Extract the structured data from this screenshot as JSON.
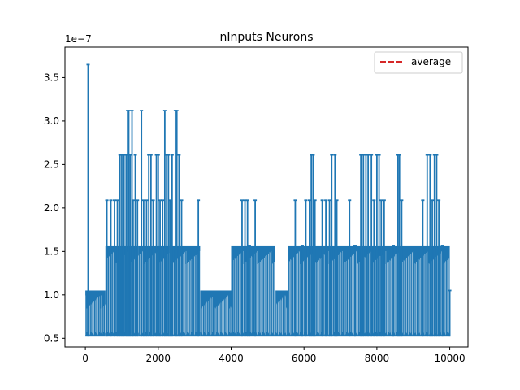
{
  "chart_data": {
    "type": "line",
    "title": "nInputs Neurons",
    "xlabel": "",
    "ylabel": "",
    "y_offset_label": "1e−7",
    "xlim": [
      -560,
      10500
    ],
    "ylim": [
      0.4,
      3.85
    ],
    "xticks": [
      0,
      2000,
      4000,
      6000,
      8000,
      10000
    ],
    "xtick_labels": [
      "0",
      "2000",
      "4000",
      "6000",
      "8000",
      "10000"
    ],
    "yticks": [
      0.5,
      1.0,
      1.5,
      2.0,
      2.5,
      3.0,
      3.5
    ],
    "ytick_labels": [
      "0.5",
      "1.0",
      "1.5",
      "2.0",
      "2.5",
      "3.0",
      "3.5"
    ],
    "grid": false,
    "legend_position": "top-right",
    "series": [
      {
        "name": "",
        "color": "#1f77b4",
        "x_range": [
          0,
          10000
        ],
        "floor": 0.52,
        "segments": [
          {
            "x0": 0,
            "x1": 550,
            "top": 1.05
          },
          {
            "x0": 550,
            "x1": 1450,
            "top": 1.56
          },
          {
            "x0": 1450,
            "x1": 2300,
            "top": 1.56
          },
          {
            "x0": 2300,
            "x1": 3150,
            "top": 1.56
          },
          {
            "x0": 3150,
            "x1": 4000,
            "top": 1.05
          },
          {
            "x0": 4000,
            "x1": 5200,
            "top": 1.56
          },
          {
            "x0": 5200,
            "x1": 5550,
            "top": 1.05
          },
          {
            "x0": 5550,
            "x1": 10000,
            "top": 1.56
          }
        ],
        "spikes": [
          [
            75,
            3.65
          ],
          [
            590,
            2.09
          ],
          [
            700,
            2.09
          ],
          [
            800,
            2.09
          ],
          [
            880,
            2.09
          ],
          [
            950,
            2.61
          ],
          [
            1000,
            2.61
          ],
          [
            1060,
            2.61
          ],
          [
            1120,
            2.61
          ],
          [
            1160,
            3.12
          ],
          [
            1190,
            3.12
          ],
          [
            1230,
            2.61
          ],
          [
            1280,
            3.12
          ],
          [
            1310,
            2.09
          ],
          [
            1370,
            2.61
          ],
          [
            1430,
            2.09
          ],
          [
            1540,
            3.12
          ],
          [
            1600,
            2.09
          ],
          [
            1680,
            2.09
          ],
          [
            1740,
            2.61
          ],
          [
            1800,
            2.61
          ],
          [
            1860,
            2.09
          ],
          [
            1950,
            2.61
          ],
          [
            2000,
            2.61
          ],
          [
            2050,
            2.09
          ],
          [
            2120,
            2.09
          ],
          [
            2180,
            3.12
          ],
          [
            2230,
            2.61
          ],
          [
            2280,
            2.61
          ],
          [
            2320,
            2.09
          ],
          [
            2380,
            2.61
          ],
          [
            2470,
            3.12
          ],
          [
            2510,
            3.12
          ],
          [
            2570,
            2.61
          ],
          [
            2640,
            2.09
          ],
          [
            3100,
            2.09
          ],
          [
            4300,
            2.09
          ],
          [
            4380,
            2.09
          ],
          [
            4450,
            2.09
          ],
          [
            4500,
            1.56
          ],
          [
            4660,
            2.09
          ],
          [
            5760,
            2.09
          ],
          [
            5950,
            1.56
          ],
          [
            6050,
            2.09
          ],
          [
            6150,
            2.09
          ],
          [
            6200,
            2.61
          ],
          [
            6250,
            2.61
          ],
          [
            6300,
            2.09
          ],
          [
            6500,
            2.09
          ],
          [
            6600,
            2.09
          ],
          [
            6700,
            2.09
          ],
          [
            6760,
            2.61
          ],
          [
            6850,
            2.61
          ],
          [
            6900,
            2.09
          ],
          [
            7250,
            2.09
          ],
          [
            7400,
            1.56
          ],
          [
            7560,
            2.61
          ],
          [
            7630,
            2.61
          ],
          [
            7700,
            2.61
          ],
          [
            7760,
            2.61
          ],
          [
            7850,
            2.61
          ],
          [
            7920,
            2.09
          ],
          [
            8000,
            2.61
          ],
          [
            8060,
            2.61
          ],
          [
            8120,
            2.09
          ],
          [
            8200,
            2.09
          ],
          [
            8450,
            1.56
          ],
          [
            8580,
            2.61
          ],
          [
            8620,
            2.61
          ],
          [
            8680,
            2.09
          ],
          [
            9260,
            2.09
          ],
          [
            9380,
            2.61
          ],
          [
            9460,
            2.61
          ],
          [
            9520,
            2.09
          ],
          [
            9580,
            2.61
          ],
          [
            9640,
            2.61
          ],
          [
            9700,
            2.09
          ],
          [
            9800,
            1.56
          ],
          [
            10000,
            1.05
          ]
        ]
      },
      {
        "name": "average",
        "color": "#d62728",
        "linestyle": "dashed",
        "values": []
      }
    ]
  }
}
